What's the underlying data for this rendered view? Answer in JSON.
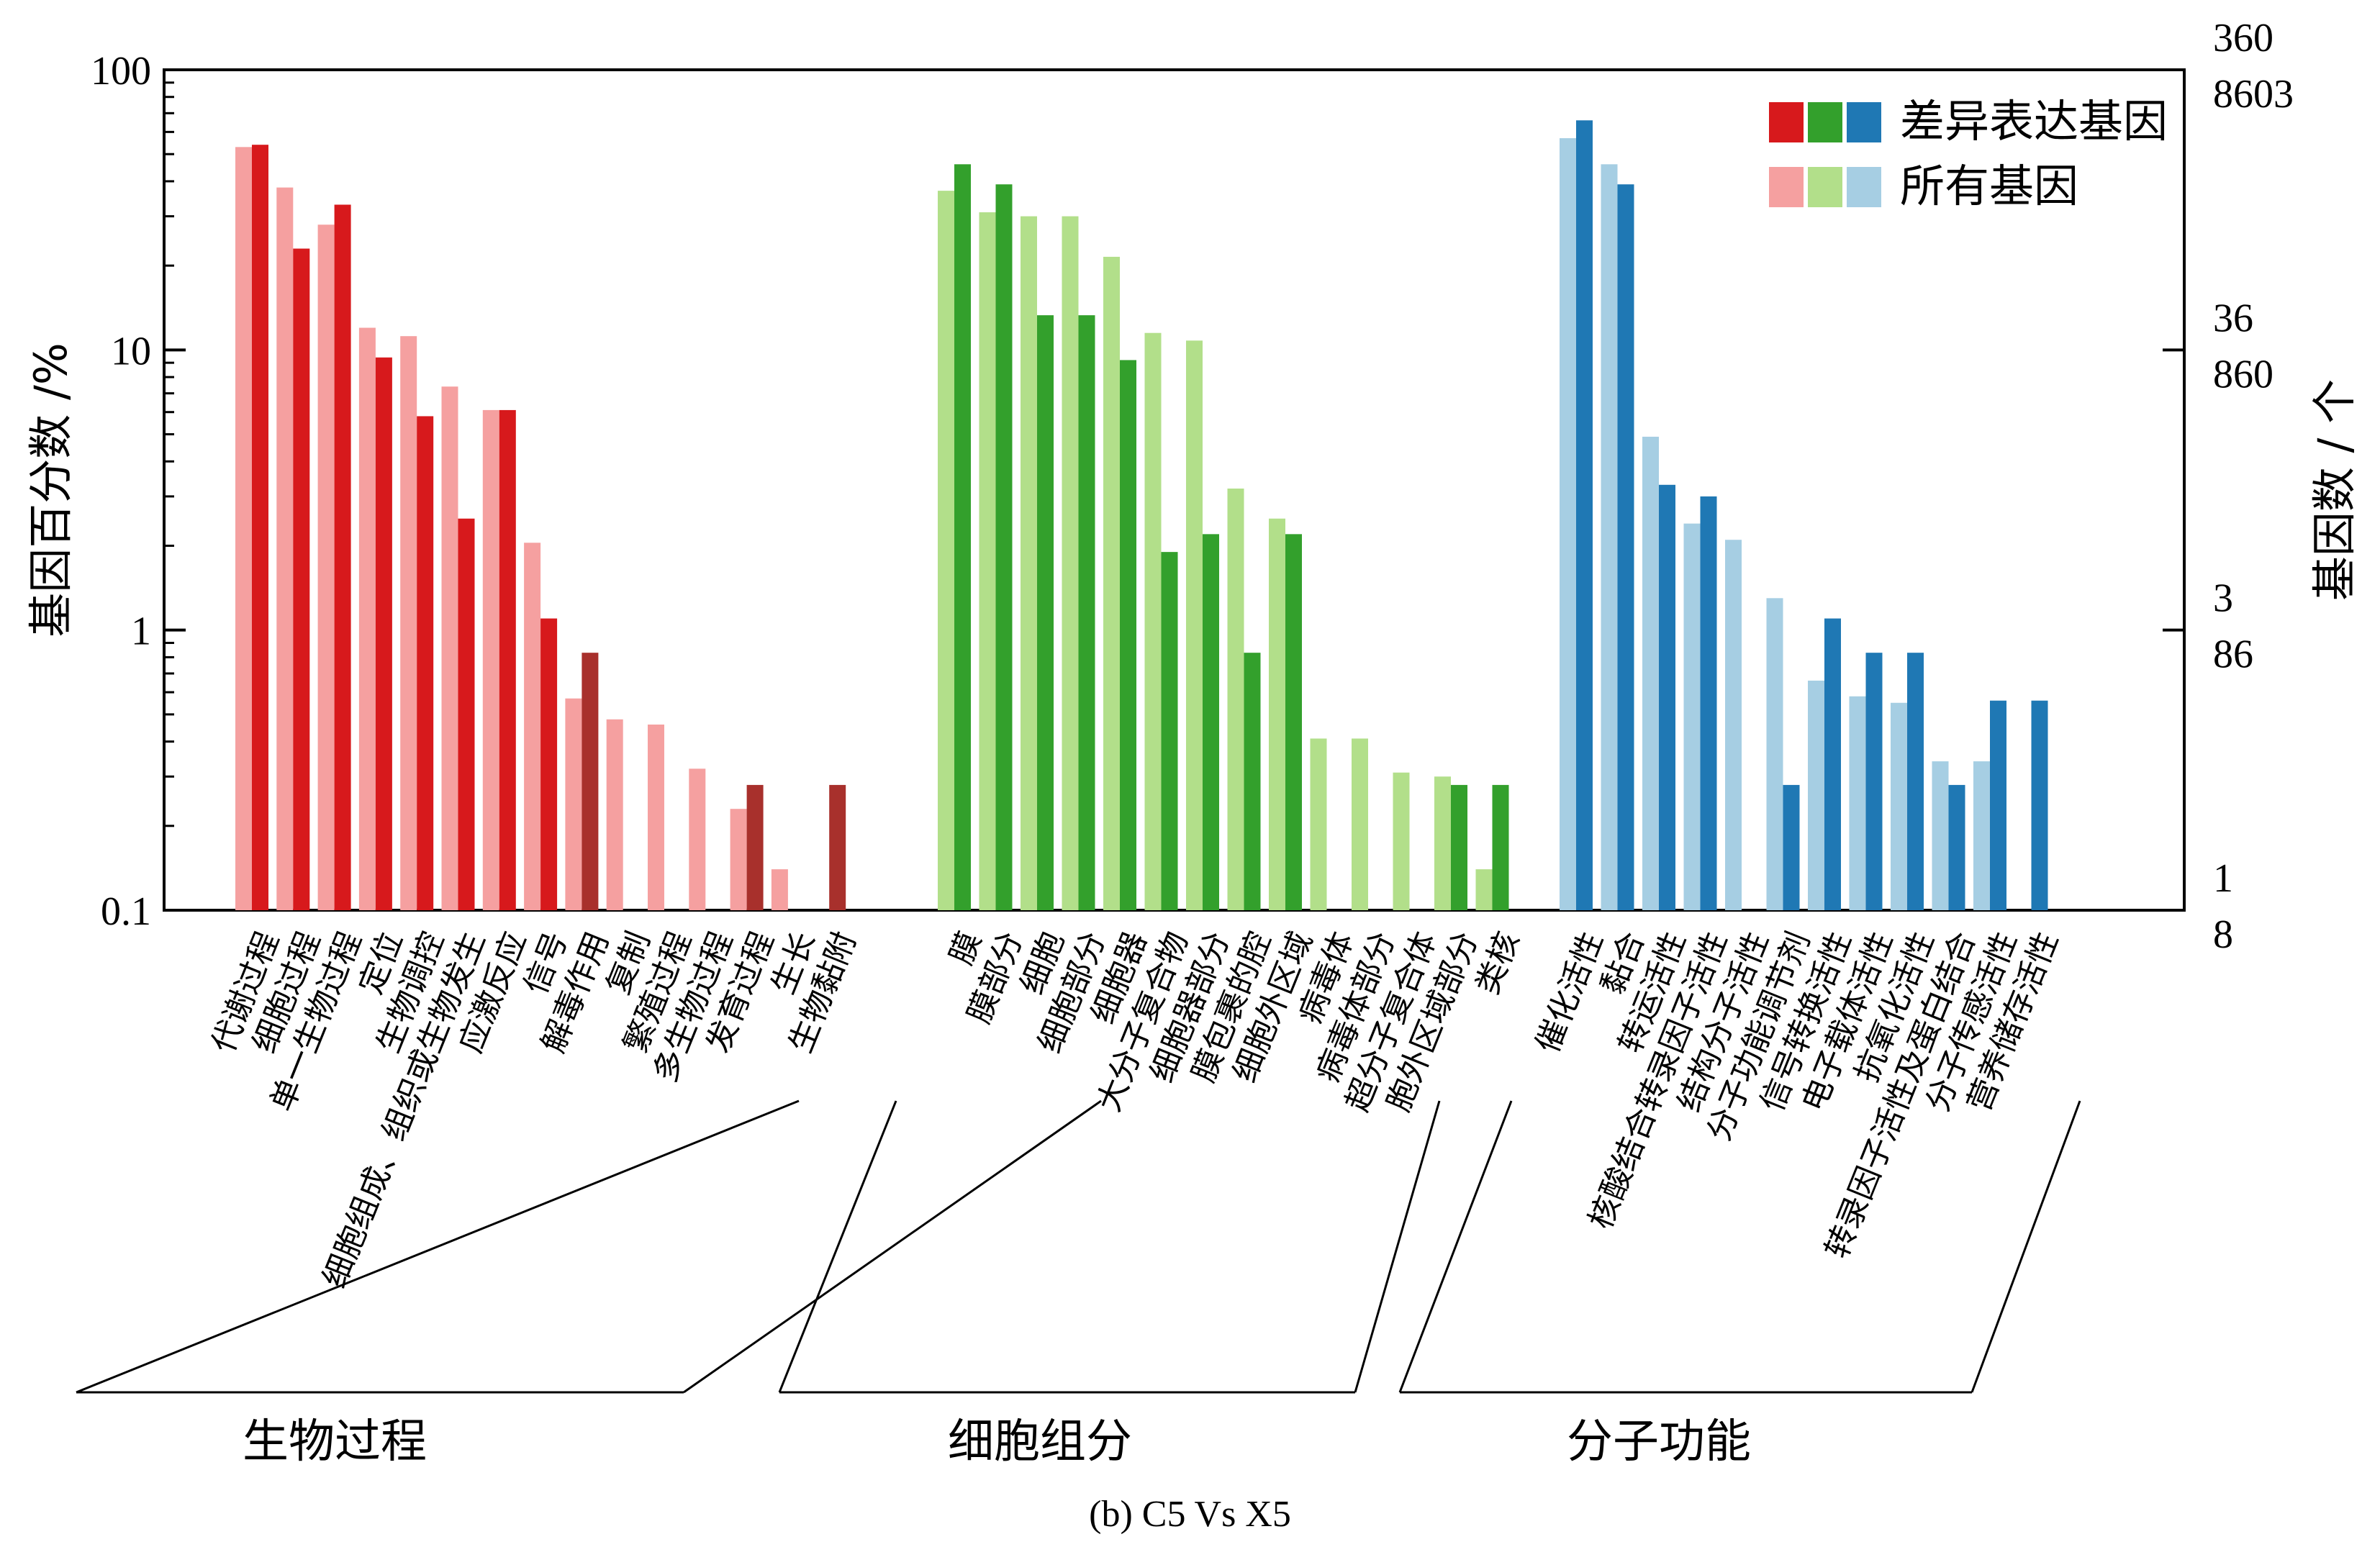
{
  "figure": {
    "caption": "(b) C5 Vs X5"
  },
  "chart_data": {
    "type": "bar",
    "yscale": "log",
    "ylim": [
      0.1,
      100
    ],
    "ylabel": "基因百分数 /%",
    "y_ticks": [
      "0.1",
      "1",
      "10",
      "100"
    ],
    "right_axis": {
      "label": "基因数 / 个",
      "ticks": [
        {
          "top": "1",
          "bottom": "8"
        },
        {
          "top": "3",
          "bottom": "86"
        },
        {
          "top": "36",
          "bottom": "860"
        },
        {
          "top": "360",
          "bottom": "8603"
        }
      ]
    },
    "legend": {
      "position": "top-right",
      "entries": [
        "差异表达基因",
        "所有基因"
      ]
    },
    "series_names": [
      "所有基因",
      "差异表达基因"
    ],
    "groups": [
      {
        "name": "生物过程",
        "colors": {
          "all": "#f5a0a0",
          "deg": "#d7191c",
          "deg_alt": "#a8302c"
        },
        "categories": [
          {
            "label": "代谢过程",
            "all": 53,
            "deg": 54
          },
          {
            "label": "细胞过程",
            "all": 38,
            "deg": 23
          },
          {
            "label": "单一生物过程",
            "all": 28,
            "deg": 33
          },
          {
            "label": "定位",
            "all": 12,
            "deg": 9.4
          },
          {
            "label": "生物调控",
            "all": 11.2,
            "deg": 5.8
          },
          {
            "label": "细胞组成、组织或生物发生",
            "all": 7.4,
            "deg": 2.5
          },
          {
            "label": "应激反应",
            "all": 6.1,
            "deg": 6.1
          },
          {
            "label": "信号",
            "all": 2.05,
            "deg": 1.1
          },
          {
            "label": "解毒作用",
            "all": 0.57,
            "deg": 0.83,
            "deg_dark": true
          },
          {
            "label": "复制",
            "all": 0.48,
            "deg": null
          },
          {
            "label": "繁殖过程",
            "all": 0.46,
            "deg": null
          },
          {
            "label": "多生物过程",
            "all": 0.32,
            "deg": null
          },
          {
            "label": "发育过程",
            "all": 0.23,
            "deg": 0.28,
            "deg_dark": true
          },
          {
            "label": "生长",
            "all": 0.14,
            "deg": null
          },
          {
            "label": "生物黏附",
            "all": null,
            "deg": 0.28,
            "deg_dark": true
          }
        ]
      },
      {
        "name": "细胞组分",
        "colors": {
          "all": "#b2df8a",
          "deg": "#33a02c"
        },
        "categories": [
          {
            "label": "膜",
            "all": 37,
            "deg": 46
          },
          {
            "label": "膜部分",
            "all": 31,
            "deg": 39
          },
          {
            "label": "细胞",
            "all": 30,
            "deg": 13.3
          },
          {
            "label": "细胞部分",
            "all": 30,
            "deg": 13.3
          },
          {
            "label": "细胞器",
            "all": 21.5,
            "deg": 9.2
          },
          {
            "label": "大分子复合物",
            "all": 11.5,
            "deg": 1.9
          },
          {
            "label": "细胞器部分",
            "all": 10.8,
            "deg": 2.2
          },
          {
            "label": "膜包裹的腔",
            "all": 3.2,
            "deg": 0.83
          },
          {
            "label": "细胞外区域",
            "all": 2.5,
            "deg": 2.2
          },
          {
            "label": "病毒体",
            "all": 0.41,
            "deg": null
          },
          {
            "label": "病毒体部分",
            "all": 0.41,
            "deg": null
          },
          {
            "label": "超分子复合体",
            "all": 0.31,
            "deg": null
          },
          {
            "label": "胞外区域部分",
            "all": 0.3,
            "deg": 0.28
          },
          {
            "label": "类核",
            "all": 0.14,
            "deg": 0.28
          }
        ]
      },
      {
        "name": "分子功能",
        "colors": {
          "all": "#a6cee3",
          "deg": "#1f78b4"
        },
        "categories": [
          {
            "label": "催化活性",
            "all": 57,
            "deg": 66
          },
          {
            "label": "黏合",
            "all": 46,
            "deg": 39
          },
          {
            "label": "转运活性",
            "all": 4.9,
            "deg": 3.3
          },
          {
            "label": "核酸结合转录因子活性",
            "all": 2.4,
            "deg": 3.0
          },
          {
            "label": "结构分子活性",
            "all": 2.1,
            "deg": null
          },
          {
            "label": "分子功能调节剂",
            "all": 1.3,
            "deg": 0.28
          },
          {
            "label": "信号转换活性",
            "all": 0.66,
            "deg": 1.1
          },
          {
            "label": "电子载体活性",
            "all": 0.58,
            "deg": 0.83
          },
          {
            "label": "抗氧化活性",
            "all": 0.55,
            "deg": 0.83
          },
          {
            "label": "转录因子活性及蛋白结合",
            "all": 0.34,
            "deg": 0.28
          },
          {
            "label": "分子传感活性",
            "all": 0.34,
            "deg": 0.56
          },
          {
            "label": "营养储存活性",
            "all": null,
            "deg": 0.56
          }
        ]
      }
    ]
  }
}
